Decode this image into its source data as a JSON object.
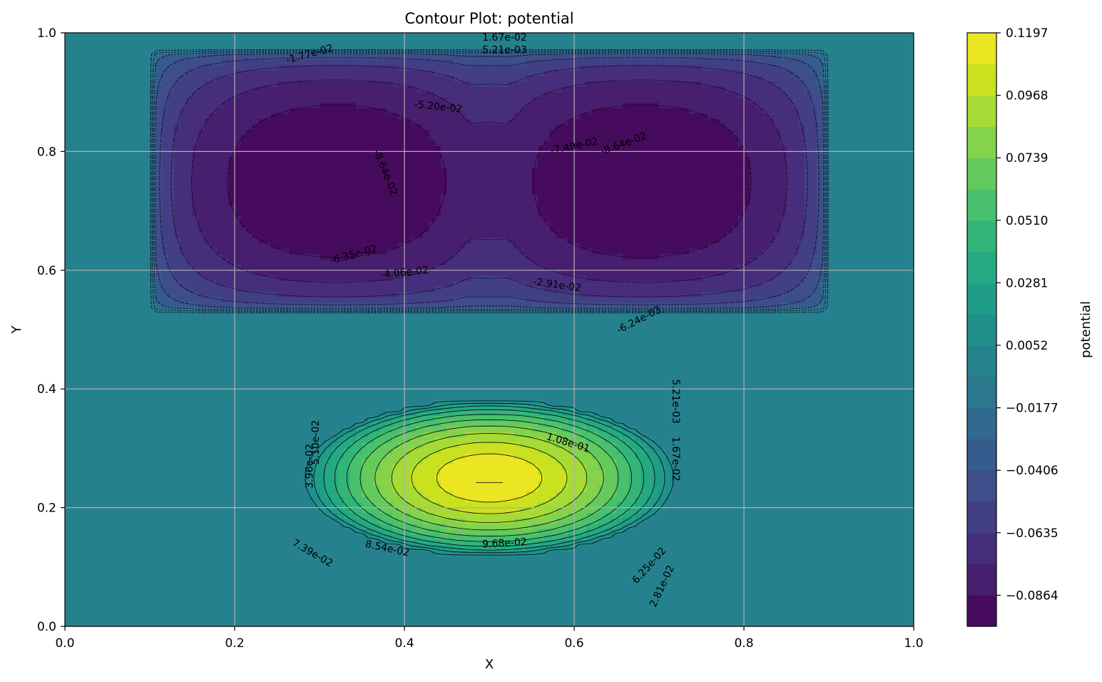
{
  "chart_data": {
    "type": "contour",
    "title": "Contour Plot: potential",
    "xlabel": "X",
    "ylabel": "Y",
    "xlim": [
      0.0,
      1.0
    ],
    "ylim": [
      0.0,
      1.0
    ],
    "x_ticks": [
      "0.0",
      "0.2",
      "0.4",
      "0.6",
      "0.8",
      "1.0"
    ],
    "y_ticks": [
      "0.0",
      "0.2",
      "0.4",
      "0.6",
      "0.8",
      "1.0"
    ],
    "grid": true,
    "colormap": "viridis",
    "colorbar": {
      "label": "potential",
      "range": [
        -0.0978,
        0.1197
      ],
      "ticks": [
        "0.1197",
        "0.0968",
        "0.0739",
        "0.0510",
        "0.0281",
        "0.0052",
        "−0.0177",
        "−0.0406",
        "−0.0635",
        "−0.0864"
      ],
      "tick_values": [
        0.1197,
        0.0968,
        0.0739,
        0.051,
        0.0281,
        0.0052,
        -0.0177,
        -0.0406,
        -0.0635,
        -0.0864
      ]
    },
    "features": [
      {
        "kind": "maximum",
        "center": [
          0.5,
          0.25
        ],
        "value": 0.1197
      },
      {
        "kind": "minimum",
        "center": [
          0.32,
          0.75
        ],
        "value": -0.0978
      },
      {
        "kind": "minimum",
        "center": [
          0.68,
          0.75
        ],
        "value": -0.0978
      }
    ],
    "contour_labels": [
      {
        "text": "1.67e-02",
        "x": 0.518,
        "y": 0.993,
        "rot": 0
      },
      {
        "text": "5.21e-03",
        "x": 0.518,
        "y": 0.972,
        "rot": 0
      },
      {
        "text": "-1.77e-02",
        "x": 0.288,
        "y": 0.965,
        "rot": -15
      },
      {
        "text": "-5.20e-02",
        "x": 0.44,
        "y": 0.876,
        "rot": 6
      },
      {
        "text": "-7.49e-02",
        "x": 0.6,
        "y": 0.81,
        "rot": -12
      },
      {
        "text": "-8.64e-02",
        "x": 0.658,
        "y": 0.814,
        "rot": -20
      },
      {
        "text": "-8.64e-02",
        "x": 0.378,
        "y": 0.765,
        "rot": 68
      },
      {
        "text": "-6.35e-02",
        "x": 0.34,
        "y": 0.627,
        "rot": -15
      },
      {
        "text": "-4.06e-02",
        "x": 0.4,
        "y": 0.597,
        "rot": -6
      },
      {
        "text": "-2.91e-02",
        "x": 0.58,
        "y": 0.576,
        "rot": 8
      },
      {
        "text": "-6.24e-03",
        "x": 0.676,
        "y": 0.517,
        "rot": -27
      },
      {
        "text": "5.21e-03",
        "x": 0.72,
        "y": 0.379,
        "rot": 90
      },
      {
        "text": "1.67e-02",
        "x": 0.72,
        "y": 0.282,
        "rot": 90
      },
      {
        "text": "1.08e-01",
        "x": 0.593,
        "y": 0.31,
        "rot": 17
      },
      {
        "text": "3.96e-02",
        "x": 0.288,
        "y": 0.27,
        "rot": -90
      },
      {
        "text": "5.10e-02",
        "x": 0.295,
        "y": 0.31,
        "rot": -90
      },
      {
        "text": "9.68e-02",
        "x": 0.518,
        "y": 0.141,
        "rot": -3
      },
      {
        "text": "8.54e-02",
        "x": 0.38,
        "y": 0.132,
        "rot": 12
      },
      {
        "text": "7.39e-02",
        "x": 0.292,
        "y": 0.124,
        "rot": 30
      },
      {
        "text": "6.25e-02",
        "x": 0.688,
        "y": 0.103,
        "rot": -48
      },
      {
        "text": "2.81e-02",
        "x": 0.703,
        "y": 0.068,
        "rot": -65
      }
    ]
  }
}
